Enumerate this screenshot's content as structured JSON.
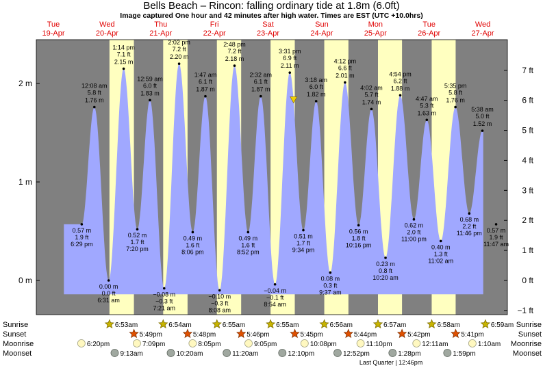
{
  "header": {
    "title": "Bells Beach – Rincon: falling  ordinary tide at 1.8m (6.0ft)",
    "subtitle": "Image captured One hour and 42 minutes after high water. Times are EST (UTC +10.0hrs)"
  },
  "colors": {
    "night": "#808080",
    "day": "#ffffc0",
    "water": "#a0a8ff",
    "day_label": "#e00000",
    "sun": "#c8b400",
    "sunset": "#e05000",
    "moonrise": "#fff8c0",
    "moonset": "#a0a8a0",
    "marker": "#f0d000"
  },
  "chart_data": {
    "type": "area",
    "title": "Bells Beach – Rincon: falling  ordinary tide at 1.8m (6.0ft)",
    "x_unit": "hours from Tue 19-Apr 00:00",
    "xlim": [
      0,
      192
    ],
    "ylim_m": [
      -0.26,
      2.5
    ],
    "left_ticks": [
      "2 m",
      "1 m",
      "0 m"
    ],
    "left_tick_values": [
      2,
      1,
      0
    ],
    "right_ticks": [
      "7 ft",
      "6 ft",
      "5 ft",
      "4 ft",
      "3 ft",
      "2 ft",
      "1 ft",
      "0 ft",
      "−1 ft"
    ],
    "right_tick_values_ft": [
      7,
      6,
      5,
      4,
      3,
      2,
      1,
      0,
      -1
    ],
    "days": [
      {
        "day": "Tue",
        "date": "19-Apr",
        "at_hour": 0
      },
      {
        "day": "Wed",
        "date": "20-Apr",
        "at_hour": 24
      },
      {
        "day": "Thu",
        "date": "21-Apr",
        "at_hour": 48
      },
      {
        "day": "Fri",
        "date": "22-Apr",
        "at_hour": 72
      },
      {
        "day": "Sat",
        "date": "23-Apr",
        "at_hour": 96
      },
      {
        "day": "Sun",
        "date": "24-Apr",
        "at_hour": 120
      },
      {
        "day": "Mon",
        "date": "25-Apr",
        "at_hour": 144
      },
      {
        "day": "Tue",
        "date": "26-Apr",
        "at_hour": 168
      },
      {
        "day": "Wed",
        "date": "27-Apr",
        "at_hour": 192
      }
    ],
    "daylight": [
      [
        30.88,
        41.82
      ],
      [
        54.9,
        65.8
      ],
      [
        78.92,
        89.77
      ],
      [
        102.92,
        113.75
      ],
      [
        126.93,
        137.73
      ],
      [
        150.95,
        161.7
      ],
      [
        174.97,
        185.68
      ]
    ],
    "data_start_hour": 10.5,
    "data_end_hour": 198,
    "tides": [
      {
        "hour": 18.48,
        "m": 0.57,
        "labels": [
          "0.57 m",
          "1.9 ft",
          "6:29 pm"
        ],
        "type": "low"
      },
      {
        "hour": 24.13,
        "m": 1.76,
        "labels": [
          "12:08 am",
          "5.8 ft",
          "1.76 m"
        ],
        "type": "high"
      },
      {
        "hour": 30.52,
        "m": 0.0,
        "labels": [
          "0.00 m",
          "0.0 ft",
          "6:31 am"
        ],
        "type": "low"
      },
      {
        "hour": 37.23,
        "m": 2.15,
        "labels": [
          "1:14 pm",
          "7.1 ft",
          "2.15 m"
        ],
        "type": "high"
      },
      {
        "hour": 43.33,
        "m": 0.52,
        "labels": [
          "0.52 m",
          "1.7 ft",
          "7:20 pm"
        ],
        "type": "low"
      },
      {
        "hour": 48.98,
        "m": 1.83,
        "labels": [
          "12:59 am",
          "6.0 ft",
          "1.83 m"
        ],
        "type": "high"
      },
      {
        "hour": 55.35,
        "m": -0.08,
        "labels": [
          "−0.08 m",
          "−0.3 ft",
          "7:21 am"
        ],
        "type": "low"
      },
      {
        "hour": 62.03,
        "m": 2.2,
        "labels": [
          "2:02 pm",
          "7.2 ft",
          "2.20 m"
        ],
        "type": "high"
      },
      {
        "hour": 68.1,
        "m": 0.49,
        "labels": [
          "0.49 m",
          "1.6 ft",
          "8:06 pm"
        ],
        "type": "low"
      },
      {
        "hour": 73.78,
        "m": 1.87,
        "labels": [
          "1:47 am",
          "6.1 ft",
          "1.87 m"
        ],
        "type": "high"
      },
      {
        "hour": 80.13,
        "m": -0.1,
        "labels": [
          "−0.10 m",
          "−0.3 ft",
          "8:08 am"
        ],
        "type": "low"
      },
      {
        "hour": 86.8,
        "m": 2.18,
        "labels": [
          "2:48 pm",
          "7.2 ft",
          "2.18 m"
        ],
        "type": "high"
      },
      {
        "hour": 92.87,
        "m": 0.49,
        "labels": [
          "0.49 m",
          "1.6 ft",
          "8:52 pm"
        ],
        "type": "low"
      },
      {
        "hour": 98.53,
        "m": 1.87,
        "labels": [
          "2:32 am",
          "6.1 ft",
          "1.87 m"
        ],
        "type": "high"
      },
      {
        "hour": 104.9,
        "m": -0.04,
        "labels": [
          "−0.04 m",
          "−0.1 ft",
          "8:54 am"
        ],
        "type": "low"
      },
      {
        "hour": 111.52,
        "m": 2.11,
        "labels": [
          "3:31 pm",
          "6.9 ft",
          "2.11 m"
        ],
        "type": "high"
      },
      {
        "hour": 117.57,
        "m": 0.51,
        "labels": [
          "0.51 m",
          "1.7 ft",
          "9:34 pm"
        ],
        "type": "low"
      },
      {
        "hour": 123.3,
        "m": 1.82,
        "labels": [
          "3:18 am",
          "6.0 ft",
          "1.82 m"
        ],
        "type": "high"
      },
      {
        "hour": 129.62,
        "m": 0.08,
        "labels": [
          "0.08 m",
          "0.3 ft",
          "9:37 am"
        ],
        "type": "low"
      },
      {
        "hour": 136.2,
        "m": 2.01,
        "labels": [
          "4:12 pm",
          "6.6 ft",
          "2.01 m"
        ],
        "type": "high"
      },
      {
        "hour": 142.27,
        "m": 0.56,
        "labels": [
          "0.56 m",
          "1.8 ft",
          "10:16 pm"
        ],
        "type": "low"
      },
      {
        "hour": 148.03,
        "m": 1.74,
        "labels": [
          "4:02 am",
          "5.7 ft",
          "1.74 m"
        ],
        "type": "high"
      },
      {
        "hour": 154.33,
        "m": 0.23,
        "labels": [
          "0.23 m",
          "0.8 ft",
          "10:20 am"
        ],
        "type": "low"
      },
      {
        "hour": 160.9,
        "m": 1.88,
        "labels": [
          "4:54 pm",
          "6.2 ft",
          "1.88 m"
        ],
        "type": "high"
      },
      {
        "hour": 167.0,
        "m": 0.62,
        "labels": [
          "0.62 m",
          "2.0 ft",
          "11:00 pm"
        ],
        "type": "low"
      },
      {
        "hour": 172.78,
        "m": 1.63,
        "labels": [
          "4:47 am",
          "5.3 ft",
          "1.63 m"
        ],
        "type": "high"
      },
      {
        "hour": 179.03,
        "m": 0.4,
        "labels": [
          "0.40 m",
          "1.3 ft",
          "11:02 am"
        ],
        "type": "low"
      },
      {
        "hour": 185.58,
        "m": 1.76,
        "labels": [
          "5:35 pm",
          "5.8 ft",
          "1.76 m"
        ],
        "type": "high"
      },
      {
        "hour": 191.77,
        "m": 0.68,
        "labels": [
          "0.68 m",
          "2.2 ft",
          "11:46 pm"
        ],
        "type": "low"
      },
      {
        "hour": 197.63,
        "m": 1.52,
        "labels": [
          "5:38 am",
          "5.0 ft",
          "1.52 m"
        ],
        "type": "high"
      },
      {
        "hour": 203.78,
        "m": 0.57,
        "labels": [
          "0.57 m",
          "1.9 ft",
          "11:47 am"
        ],
        "type": "low"
      }
    ],
    "current_marker": {
      "hour": 113.2,
      "m": 1.83
    }
  },
  "legend_rows": [
    {
      "label": "Sunrise",
      "icon": "sunrise-star",
      "events": [
        {
          "hour": 30.88,
          "time": "6:53am"
        },
        {
          "hour": 54.9,
          "time": "6:54am"
        },
        {
          "hour": 78.92,
          "time": "6:55am"
        },
        {
          "hour": 102.92,
          "time": "6:55am"
        },
        {
          "hour": 126.93,
          "time": "6:56am"
        },
        {
          "hour": 150.95,
          "time": "6:57am"
        },
        {
          "hour": 174.97,
          "time": "6:58am"
        },
        {
          "hour": 198.98,
          "time": "6:59am"
        }
      ]
    },
    {
      "label": "Sunset",
      "icon": "sunset-star",
      "events": [
        {
          "hour": 41.82,
          "time": "5:49pm"
        },
        {
          "hour": 65.8,
          "time": "5:48pm"
        },
        {
          "hour": 89.77,
          "time": "5:46pm"
        },
        {
          "hour": 113.75,
          "time": "5:45pm"
        },
        {
          "hour": 137.73,
          "time": "5:44pm"
        },
        {
          "hour": 161.7,
          "time": "5:42pm"
        },
        {
          "hour": 185.68,
          "time": "5:41pm"
        }
      ]
    },
    {
      "label": "Moonrise",
      "icon": "moonrise-circle",
      "events": [
        {
          "hour": 18.33,
          "time": "6:20pm"
        },
        {
          "hour": 43.15,
          "time": "7:09pm"
        },
        {
          "hour": 68.08,
          "time": "8:05pm"
        },
        {
          "hour": 93.08,
          "time": "9:05pm"
        },
        {
          "hour": 118.13,
          "time": "10:08pm"
        },
        {
          "hour": 143.17,
          "time": "11:10pm"
        },
        {
          "hour": 168.18,
          "time": "12:11am"
        },
        {
          "hour": 193.17,
          "time": "1:10am"
        }
      ]
    },
    {
      "label": "Moonset",
      "icon": "moonset-circle",
      "events": [
        {
          "hour": 33.22,
          "time": "9:13am"
        },
        {
          "hour": 58.33,
          "time": "10:20am"
        },
        {
          "hour": 83.33,
          "time": "11:20am"
        },
        {
          "hour": 108.17,
          "time": "12:10pm"
        },
        {
          "hour": 132.87,
          "time": "12:52pm"
        },
        {
          "hour": 157.47,
          "time": "1:28pm"
        },
        {
          "hour": 181.98,
          "time": "1:59pm"
        }
      ]
    }
  ],
  "moon_phase": {
    "text": "Last Quarter | 12:46pm",
    "hour": 156.77
  }
}
